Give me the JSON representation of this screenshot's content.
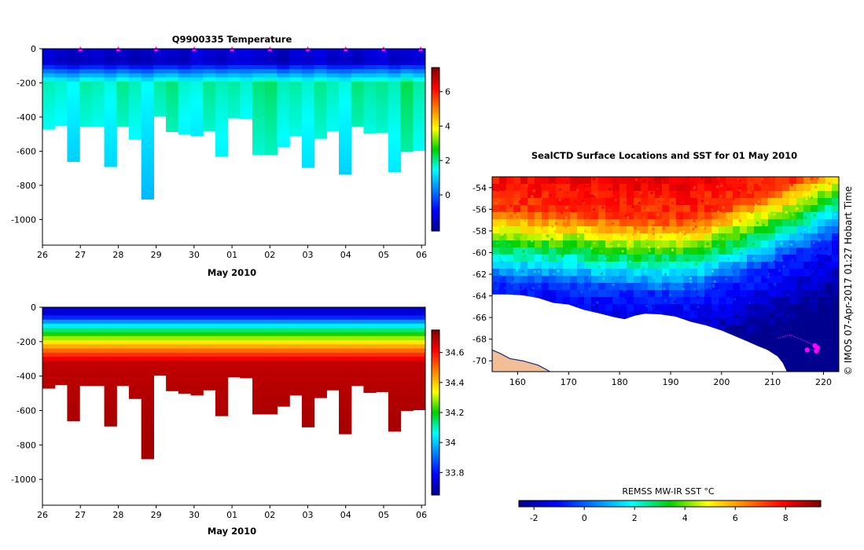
{
  "chart_data": [
    {
      "id": "temperature",
      "type": "heatmap",
      "title": "Q9900335  Temperature",
      "xlabel": "May 2010",
      "ylabel": "",
      "x_ticks": [
        "26",
        "27",
        "28",
        "29",
        "30",
        "01",
        "02",
        "03",
        "04",
        "05",
        "06"
      ],
      "xlim": [
        26,
        36.1
      ],
      "ylim": [
        -1150,
        0
      ],
      "y_ticks": [
        0,
        -200,
        -400,
        -600,
        -800,
        -1000
      ],
      "colorbar": {
        "range": [
          -2.1,
          7.4
        ],
        "ticks": [
          0,
          2,
          4,
          6
        ]
      },
      "markers_at_surface": [
        27,
        28,
        29,
        30,
        31,
        32,
        33,
        34,
        35,
        36
      ],
      "profile_depths": [
        470,
        450,
        660,
        455,
        455,
        690,
        455,
        530,
        880,
        395,
        485,
        500,
        510,
        480,
        630,
        405,
        410,
        620,
        620,
        575,
        510,
        695,
        525,
        480,
        735,
        455,
        495,
        490,
        720,
        600,
        595
      ],
      "profile_surface_values": [
        -1.1,
        -1.3,
        -1.4,
        -1.3,
        -1.2,
        -1.4,
        -1.3,
        -1.5,
        -1.4,
        -1.2,
        -1.3,
        -1.4,
        -1.0,
        -1.2,
        -1.3,
        -1.1,
        -1.0,
        -1.2,
        -1.3,
        -1.5,
        -1.1,
        -1.2,
        -1.0,
        -1.3,
        -1.2,
        -1.4,
        -1.1,
        -1.0,
        -1.3,
        -1.2,
        -1.1
      ],
      "profile_core_values": [
        1.5,
        1.4,
        1.2,
        1.6,
        1.5,
        1.3,
        1.7,
        1.5,
        1.2,
        1.6,
        1.8,
        1.4,
        1.3,
        1.7,
        1.5,
        1.6,
        1.4,
        1.8,
        1.9,
        1.5,
        1.6,
        1.4,
        1.7,
        1.5,
        1.3,
        1.8,
        1.6,
        1.7,
        1.5,
        2.0,
        1.6
      ]
    },
    {
      "id": "salinity",
      "type": "heatmap",
      "title": "",
      "xlabel": "May 2010",
      "ylabel": "",
      "x_ticks": [
        "26",
        "27",
        "28",
        "29",
        "30",
        "01",
        "02",
        "03",
        "04",
        "05",
        "06"
      ],
      "xlim": [
        26,
        36.1
      ],
      "ylim": [
        -1150,
        0
      ],
      "y_ticks": [
        0,
        -200,
        -400,
        -600,
        -800,
        -1000
      ],
      "colorbar": {
        "range": [
          33.65,
          34.75
        ],
        "ticks": [
          33.8,
          34,
          34.2,
          34.4,
          34.6
        ],
        "tick_labels": [
          "33.8",
          "34",
          "34.2",
          "34.4",
          "34.6"
        ]
      },
      "profile_depths": [
        470,
        450,
        660,
        455,
        455,
        690,
        455,
        530,
        880,
        395,
        485,
        500,
        510,
        480,
        630,
        405,
        410,
        620,
        620,
        575,
        510,
        695,
        525,
        480,
        735,
        455,
        495,
        490,
        720,
        600,
        595
      ]
    },
    {
      "id": "sst_map",
      "type": "heatmap",
      "title": "SealCTD Surface Locations and SST for 01 May 2010",
      "xlabel": "",
      "ylabel": "",
      "xlim": [
        155,
        223
      ],
      "ylim": [
        -71,
        -53
      ],
      "x_ticks": [
        160,
        170,
        180,
        190,
        200,
        210,
        220
      ],
      "y_ticks": [
        -54,
        -56,
        -58,
        -60,
        -62,
        -64,
        -66,
        -68,
        -70
      ],
      "colorbar": {
        "label": "REMSS MW-IR SST °C",
        "range": [
          -2.6,
          9.4
        ],
        "ticks": [
          -2,
          0,
          2,
          4,
          6,
          8
        ]
      },
      "seal_track": [
        [
          211,
          -67.9
        ],
        [
          213.5,
          -67.6
        ],
        [
          215.5,
          -68.0
        ],
        [
          217,
          -68.3
        ],
        [
          218.2,
          -68.6
        ],
        [
          218.5,
          -69.0
        ],
        [
          217.5,
          -69.0
        ]
      ],
      "seal_points": [
        [
          216.8,
          -69.0
        ],
        [
          218.3,
          -68.6
        ],
        [
          218.8,
          -68.8
        ],
        [
          218.6,
          -69.1
        ]
      ]
    }
  ],
  "credit": "© IMOS 07-Apr-2017 01:27 Hobart Time",
  "colors": {
    "marker": "#ff00ff",
    "land": "#f2be96"
  }
}
